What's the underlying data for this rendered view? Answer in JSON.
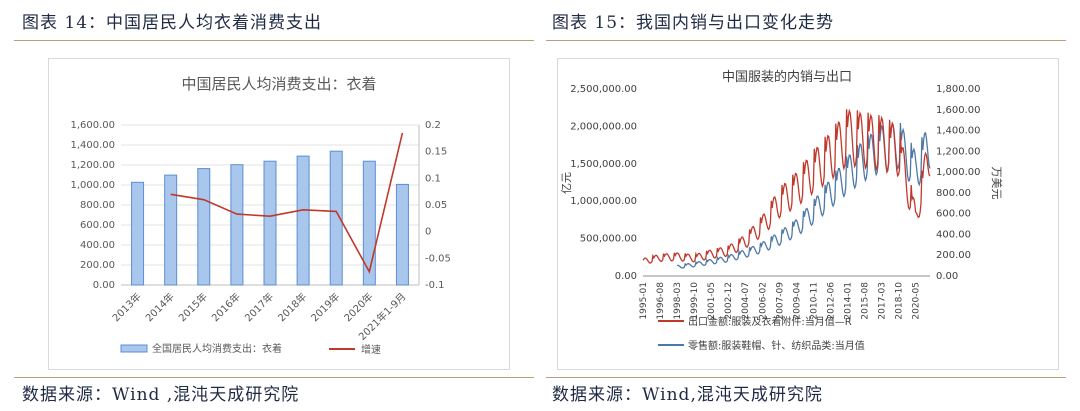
{
  "left": {
    "caption": "图表 14：中国居民人均衣着消费支出",
    "source": "数据来源：Wind ,混沌天成研究院"
  },
  "right": {
    "caption": "图表 15：我国内销与出口变化走势",
    "source": "数据来源：Wind,混沌天成研究院"
  },
  "colors": {
    "bar_fill": "#a9c6ec",
    "bar_stroke": "#5b8fd2",
    "line_red": "#c0392b",
    "line_blue": "#4e79a7",
    "rule": "#b8a17a",
    "caption_text": "#1f2a44"
  },
  "chart_data": [
    {
      "type": "bar",
      "title": "中国居民人均消费支出：衣着",
      "categories": [
        "2013年",
        "2014年",
        "2015年",
        "2016年",
        "2017年",
        "2018年",
        "2019年",
        "2020年",
        "2021年1-9月"
      ],
      "series": [
        {
          "name": "全国居民人均消费支出：衣着",
          "type": "bar",
          "axis": "left",
          "values": [
            1027,
            1099,
            1164,
            1203,
            1238,
            1289,
            1338,
            1238,
            1006
          ]
        },
        {
          "name": "增速",
          "type": "line",
          "axis": "right",
          "values": [
            null,
            0.07,
            0.06,
            0.033,
            0.029,
            0.041,
            0.038,
            -0.075,
            0.185
          ]
        }
      ],
      "y_left": {
        "min": 0,
        "max": 1600,
        "step": 200,
        "ticks": [
          "0.00",
          "200.00",
          "400.00",
          "600.00",
          "800.00",
          "1,000.00",
          "1,200.00",
          "1,400.00",
          "1,600.00"
        ]
      },
      "y_right": {
        "min": -0.1,
        "max": 0.2,
        "step": 0.05,
        "ticks": [
          "-0.1",
          "-0.05",
          "0",
          "0.05",
          "0.1",
          "0.15",
          "0.2"
        ]
      },
      "legend": "bottom",
      "grid": true
    },
    {
      "type": "line",
      "title": "中国服装的内销与出口",
      "ylabel_left": "亿元",
      "ylabel_right": "万美元",
      "x_ticks": [
        "1995-01",
        "1996-08",
        "1998-03",
        "1999-10",
        "2001-05",
        "2002-12",
        "2004-07",
        "2006-02",
        "2007-09",
        "2009-04",
        "2010-11",
        "2012-06",
        "2014-01",
        "2015-08",
        "2017-03",
        "2018-10",
        "2020-05"
      ],
      "y_left": {
        "min": 0,
        "max": 2500000,
        "ticks": [
          "0.00",
          "500,000.00",
          "1,000,000.00",
          "1,500,000.00",
          "2,000,000.00",
          "2,500,000.00"
        ]
      },
      "y_right": {
        "min": 0,
        "max": 1800,
        "ticks": [
          "0.00",
          "200.00",
          "400.00",
          "600.00",
          "800.00",
          "1,000.00",
          "1,200.00",
          "1,400.00",
          "1,600.00",
          "1,800.00"
        ]
      },
      "series": [
        {
          "name": "出口金额:服装及衣着附件:当月值—R",
          "axis": "right",
          "x": [
            "1995-01",
            "1996-08",
            "1998-03",
            "1999-10",
            "2001-05",
            "2002-12",
            "2004-07",
            "2006-02",
            "2007-09",
            "2009-04",
            "2010-11",
            "2012-06",
            "2014-01",
            "2015-08",
            "2017-03",
            "2018-10",
            "2020-05",
            "2021-09"
          ],
          "values": [
            140,
            175,
            185,
            170,
            210,
            240,
            330,
            480,
            700,
            830,
            1000,
            1150,
            1330,
            1300,
            1270,
            1200,
            550,
            1200
          ]
        },
        {
          "name": "零售额:服装鞋帽、针、纺织品类:当月值",
          "axis": "left",
          "x": [
            "1995-01",
            "1996-08",
            "1998-03",
            "1999-10",
            "2001-05",
            "2002-12",
            "2004-07",
            "2006-02",
            "2007-09",
            "2009-04",
            "2010-11",
            "2012-06",
            "2014-01",
            "2015-08",
            "2017-03",
            "2018-10",
            "2020-05",
            "2021-09"
          ],
          "values": [
            null,
            null,
            120000,
            150000,
            190000,
            230000,
            300000,
            380000,
            500000,
            640000,
            850000,
            1100000,
            1350000,
            1550000,
            1700000,
            1750000,
            1400000,
            1750000
          ]
        }
      ],
      "legend": "bottom",
      "grid": false
    }
  ]
}
